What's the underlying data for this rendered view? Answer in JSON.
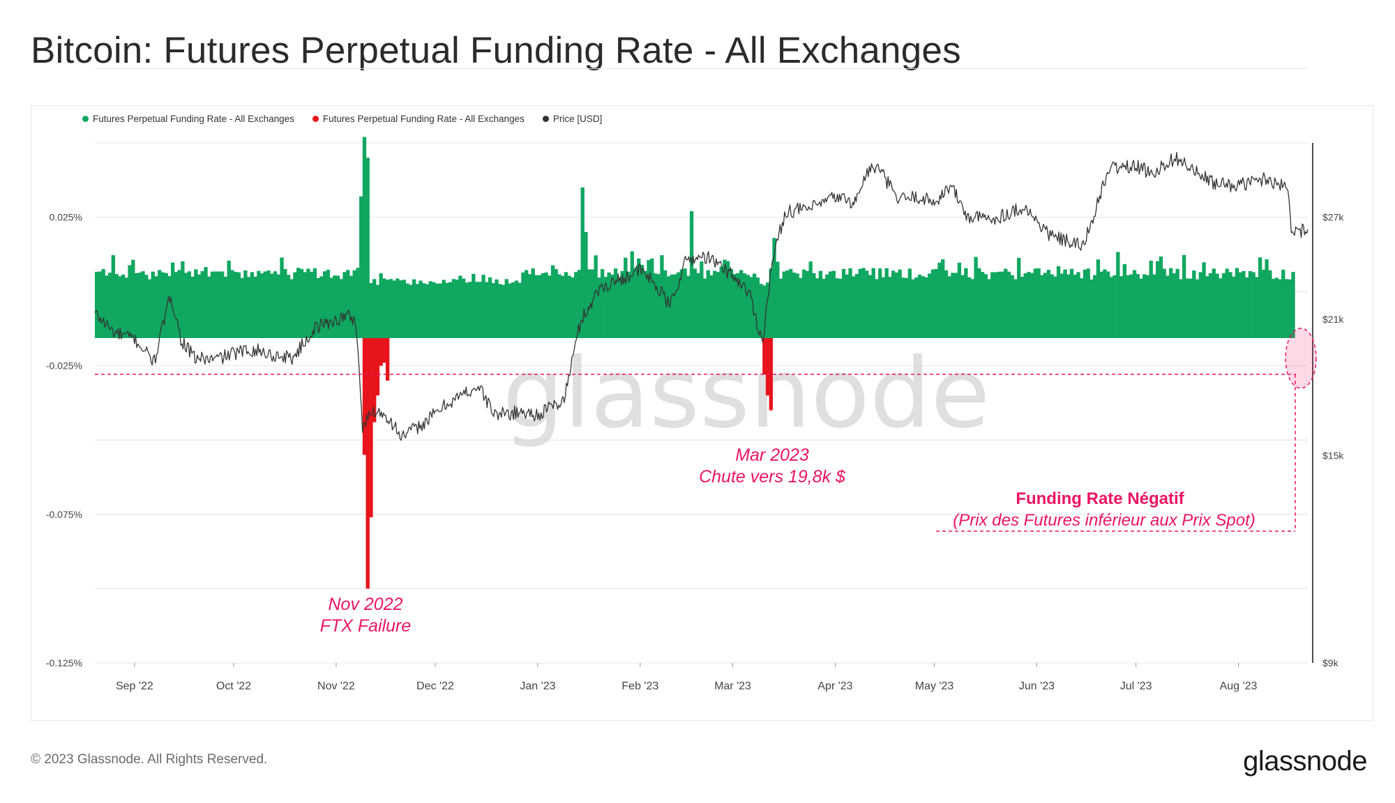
{
  "title": "Bitcoin: Futures Perpetual Funding Rate - All Exchanges",
  "footer": "© 2023 Glassnode. All Rights Reserved.",
  "brand": "glassnode",
  "watermark": "glassnode",
  "colors": {
    "positive": "#10a760",
    "negative": "#e8141b",
    "price": "#333333",
    "annotation": "#ec1464"
  },
  "chart_data": {
    "type": "bar",
    "legend": [
      {
        "label": "Futures Perpetual Funding Rate - All Exchanges",
        "color": "#10a760"
      },
      {
        "label": "Futures Perpetual Funding Rate - All Exchanges",
        "color": "#e8141b"
      },
      {
        "label": "Price [USD]",
        "color": "#333333"
      }
    ],
    "legend_position": "top-left",
    "grid": true,
    "x_ticks": [
      "Sep '22",
      "Oct '22",
      "Nov '22",
      "Dec '22",
      "Jan '23",
      "Feb '23",
      "Mar '23",
      "Apr '23",
      "May '23",
      "Jun '23",
      "Jul '23",
      "Aug '23"
    ],
    "x_range": [
      "2022-08-20",
      "2023-08-22"
    ],
    "y_left": {
      "ticks": [
        0.025,
        -0.025,
        -0.075,
        -0.125
      ],
      "tick_labels": [
        "0.025%",
        "-0.025%",
        "-0.075%",
        "-0.125%"
      ],
      "range": [
        -0.125,
        0.05
      ]
    },
    "y_right": {
      "scale": "log",
      "ticks": [
        27000,
        21000,
        15000,
        9000
      ],
      "tick_labels": [
        "$27k",
        "$21k",
        "$15k",
        "$9k"
      ]
    },
    "series": [
      {
        "name": "Price [USD]",
        "axis": "right",
        "points": [
          [
            "2022-08-20",
            21300
          ],
          [
            "2022-08-26",
            20300
          ],
          [
            "2022-09-01",
            20000
          ],
          [
            "2022-09-07",
            18900
          ],
          [
            "2022-09-12",
            22300
          ],
          [
            "2022-09-15",
            20000
          ],
          [
            "2022-09-19",
            19100
          ],
          [
            "2022-09-25",
            19000
          ],
          [
            "2022-10-01",
            19300
          ],
          [
            "2022-10-07",
            19500
          ],
          [
            "2022-10-13",
            19200
          ],
          [
            "2022-10-19",
            19100
          ],
          [
            "2022-10-26",
            20600
          ],
          [
            "2022-11-05",
            21200
          ],
          [
            "2022-11-07",
            20800
          ],
          [
            "2022-11-08",
            18500
          ],
          [
            "2022-11-09",
            16000
          ],
          [
            "2022-11-12",
            16800
          ],
          [
            "2022-11-16",
            16600
          ],
          [
            "2022-11-21",
            15700
          ],
          [
            "2022-11-28",
            16300
          ],
          [
            "2022-12-05",
            17100
          ],
          [
            "2022-12-14",
            17800
          ],
          [
            "2022-12-19",
            16600
          ],
          [
            "2022-12-27",
            16700
          ],
          [
            "2023-01-01",
            16600
          ],
          [
            "2023-01-09",
            17200
          ],
          [
            "2023-01-14",
            20900
          ],
          [
            "2023-01-20",
            22700
          ],
          [
            "2023-01-25",
            23100
          ],
          [
            "2023-02-01",
            23700
          ],
          [
            "2023-02-05",
            23000
          ],
          [
            "2023-02-10",
            21700
          ],
          [
            "2023-02-15",
            24300
          ],
          [
            "2023-02-21",
            24500
          ],
          [
            "2023-03-01",
            23400
          ],
          [
            "2023-03-06",
            22400
          ],
          [
            "2023-03-10",
            19800
          ],
          [
            "2023-03-13",
            24200
          ],
          [
            "2023-03-17",
            27400
          ],
          [
            "2023-03-25",
            27600
          ],
          [
            "2023-04-01",
            28400
          ],
          [
            "2023-04-07",
            28000
          ],
          [
            "2023-04-11",
            30300
          ],
          [
            "2023-04-14",
            30500
          ],
          [
            "2023-04-20",
            28200
          ],
          [
            "2023-04-26",
            28400
          ],
          [
            "2023-05-01",
            28000
          ],
          [
            "2023-05-06",
            29200
          ],
          [
            "2023-05-11",
            27000
          ],
          [
            "2023-05-19",
            26900
          ],
          [
            "2023-05-28",
            27700
          ],
          [
            "2023-06-05",
            25800
          ],
          [
            "2023-06-15",
            25100
          ],
          [
            "2023-06-20",
            28300
          ],
          [
            "2023-06-23",
            30500
          ],
          [
            "2023-07-01",
            30600
          ],
          [
            "2023-07-06",
            30100
          ],
          [
            "2023-07-13",
            31300
          ],
          [
            "2023-07-20",
            30000
          ],
          [
            "2023-07-25",
            29300
          ],
          [
            "2023-08-01",
            29200
          ],
          [
            "2023-08-09",
            29700
          ],
          [
            "2023-08-14",
            29300
          ],
          [
            "2023-08-16",
            28800
          ],
          [
            "2023-08-17",
            26400
          ],
          [
            "2023-08-19",
            26100
          ],
          [
            "2023-08-22",
            26200
          ]
        ]
      }
    ],
    "annotations": [
      {
        "lines": [
          "Nov 2022",
          "FTX Failure"
        ],
        "style": "italic"
      },
      {
        "lines": [
          "Mar 2023",
          "Chute vers 19,8k $"
        ],
        "style": "italic"
      },
      {
        "lines": [
          "Funding Rate Négatif",
          "(Prix des Futures inférieur aux Prix Spot)"
        ],
        "style": "bold+italic"
      }
    ]
  }
}
